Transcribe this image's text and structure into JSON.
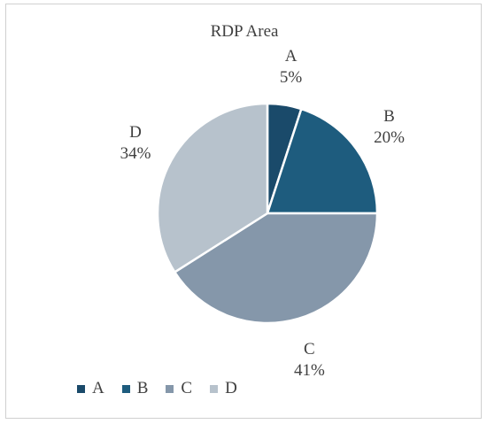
{
  "chart_data": {
    "type": "pie",
    "title": "RDP Area",
    "categories": [
      "A",
      "B",
      "C",
      "D"
    ],
    "values": [
      5,
      20,
      41,
      34
    ],
    "value_labels": [
      "5%",
      "20%",
      "41%",
      "34%"
    ],
    "colors": [
      "#1a4a6a",
      "#1e5c7e",
      "#8597aa",
      "#b7c2cc"
    ],
    "legend_position": "bottom-left",
    "start_angle": "12 o'clock",
    "direction": "clockwise"
  }
}
